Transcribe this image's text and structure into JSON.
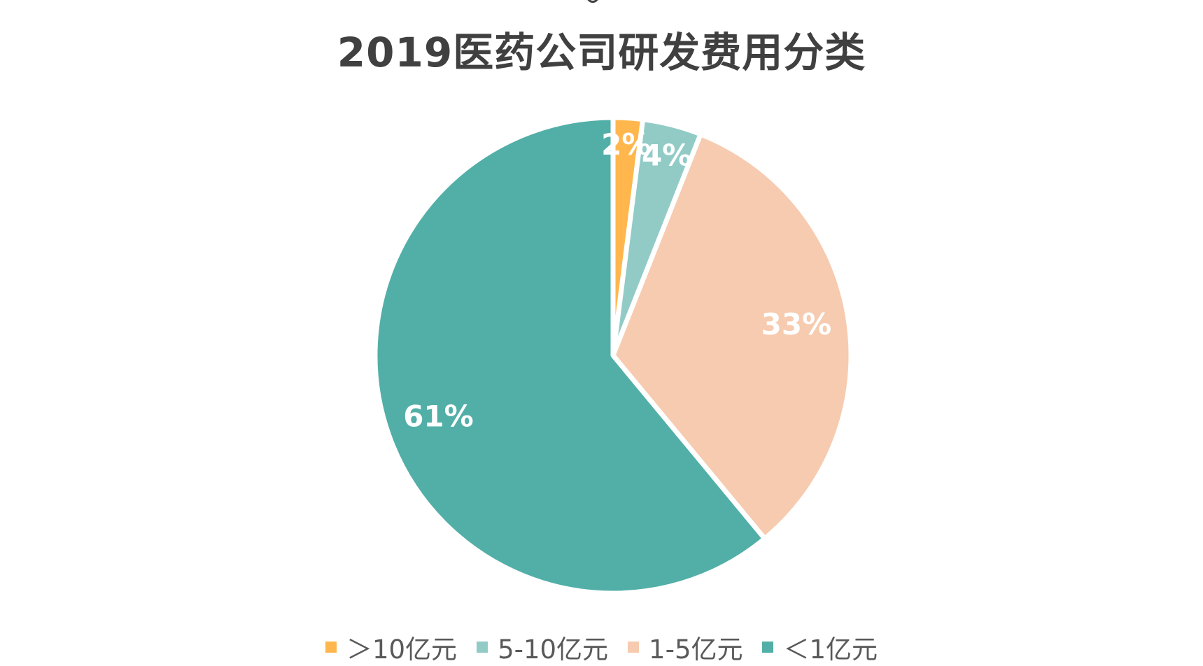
{
  "chart_data": {
    "type": "pie",
    "title": "2019医药公司研发费用分类",
    "categories": [
      "＞10亿元",
      "5-10亿元",
      "1-5亿元",
      "＜1亿元"
    ],
    "values": [
      2,
      4,
      33,
      61
    ],
    "value_labels": [
      "2%",
      "4%",
      "33%",
      "61%"
    ],
    "colors": [
      "#FFB74D",
      "#92CBC6",
      "#F6CBB0",
      "#52AFA7"
    ],
    "legend_position": "bottom"
  }
}
